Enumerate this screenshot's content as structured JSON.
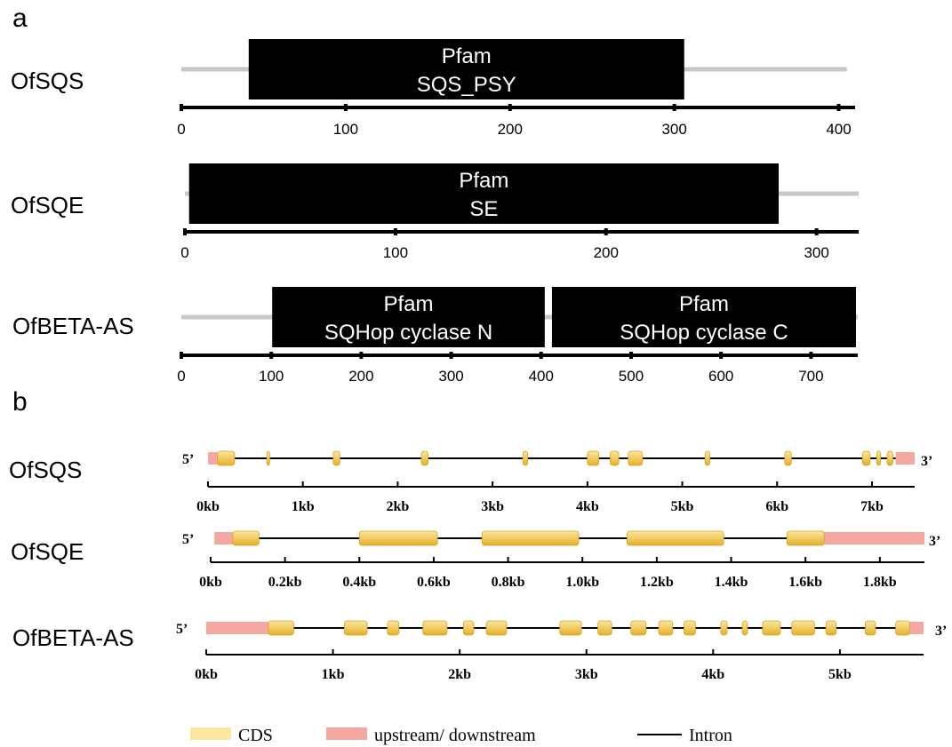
{
  "panel_a": {
    "label": "a",
    "proteins": [
      {
        "name": "OfSQS",
        "length": 405,
        "axis_max": 410,
        "ticks": [
          0,
          100,
          200,
          300,
          400
        ],
        "domains": [
          {
            "source": "Pfam",
            "name": "SQS_PSY",
            "start": 41,
            "end": 306
          }
        ]
      },
      {
        "name": "OfSQE",
        "length": 320,
        "axis_max": 320,
        "ticks": [
          0,
          100,
          200,
          300
        ],
        "domains": [
          {
            "source": "Pfam",
            "name": "SE",
            "start": 2,
            "end": 282
          }
        ]
      },
      {
        "name": "OfBETA-AS",
        "length": 752,
        "axis_max": 752,
        "ticks": [
          0,
          100,
          200,
          300,
          400,
          500,
          600,
          700
        ],
        "domains": [
          {
            "source": "Pfam",
            "name": "SQHop cyclase N",
            "start": 101,
            "end": 404
          },
          {
            "source": "Pfam",
            "name": "SQHop cyclase C",
            "start": 412,
            "end": 750
          }
        ]
      }
    ]
  },
  "panel_b": {
    "label": "b",
    "five_prime": "5’",
    "three_prime": "3’",
    "genes": [
      {
        "name": "OfSQS",
        "axis_max": 7.45,
        "ticks": [
          0,
          1,
          2,
          3,
          4,
          5,
          6,
          7
        ],
        "tick_labels": [
          "0kb",
          "1kb",
          "2kb",
          "3kb",
          "4kb",
          "5kb",
          "6kb",
          "7kb"
        ],
        "utr5": [
          0,
          0.1
        ],
        "utr3": [
          7.25,
          7.45
        ],
        "cds": [
          [
            0.1,
            0.28
          ],
          [
            0.62,
            0.65
          ],
          [
            1.32,
            1.39
          ],
          [
            2.25,
            2.32
          ],
          [
            3.32,
            3.37
          ],
          [
            4.0,
            4.12
          ],
          [
            4.24,
            4.33
          ],
          [
            4.43,
            4.58
          ],
          [
            5.24,
            5.29
          ],
          [
            6.08,
            6.15
          ],
          [
            6.9,
            6.98
          ],
          [
            7.05,
            7.09
          ],
          [
            7.16,
            7.22
          ]
        ]
      },
      {
        "name": "OfSQE",
        "axis_max": 1.92,
        "ticks": [
          0,
          0.2,
          0.4,
          0.6,
          0.8,
          1.0,
          1.2,
          1.4,
          1.6,
          1.8
        ],
        "tick_labels": [
          "0kb",
          "0.2kb",
          "0.4kb",
          "0.6kb",
          "0.8kb",
          "1.0kb",
          "1.2kb",
          "1.4kb",
          "1.6kb",
          "1.8kb"
        ],
        "utr5": [
          0.01,
          0.06
        ],
        "utr3": [
          1.65,
          1.92
        ],
        "cds": [
          [
            0.06,
            0.13
          ],
          [
            0.4,
            0.61
          ],
          [
            0.73,
            0.99
          ],
          [
            1.12,
            1.38
          ],
          [
            1.55,
            1.65
          ]
        ]
      },
      {
        "name": "OfBETA-AS",
        "axis_max": 5.66,
        "ticks": [
          0,
          1,
          2,
          3,
          4,
          5
        ],
        "tick_labels": [
          "0kb",
          "1kb",
          "2kb",
          "3kb",
          "4kb",
          "5kb"
        ],
        "utr5": [
          0,
          0.49
        ],
        "utr3": [
          5.55,
          5.66
        ],
        "cds": [
          [
            0.49,
            0.69
          ],
          [
            1.09,
            1.27
          ],
          [
            1.43,
            1.52
          ],
          [
            1.71,
            1.9
          ],
          [
            2.03,
            2.11
          ],
          [
            2.21,
            2.37
          ],
          [
            2.79,
            2.96
          ],
          [
            3.09,
            3.2
          ],
          [
            3.35,
            3.47
          ],
          [
            3.57,
            3.68
          ],
          [
            3.77,
            3.86
          ],
          [
            4.06,
            4.11
          ],
          [
            4.23,
            4.27
          ],
          [
            4.39,
            4.53
          ],
          [
            4.62,
            4.8
          ],
          [
            4.89,
            4.97
          ],
          [
            5.2,
            5.28
          ],
          [
            5.44,
            5.55
          ]
        ]
      }
    ]
  },
  "legend": {
    "items": [
      {
        "label": "CDS",
        "kind": "cds"
      },
      {
        "label": "upstream/ downstream",
        "kind": "utr"
      },
      {
        "label": "Intron",
        "kind": "intron"
      }
    ]
  },
  "colors": {
    "domain_fill": "#000000",
    "protein_line": "#c8c8c8",
    "axis": "#000000",
    "cds_top": "#fbe7a0",
    "cds_bottom": "#e3b028",
    "cds_edge": "#d9a21c",
    "utr": "#f5a8a2",
    "intron": "#000000"
  }
}
